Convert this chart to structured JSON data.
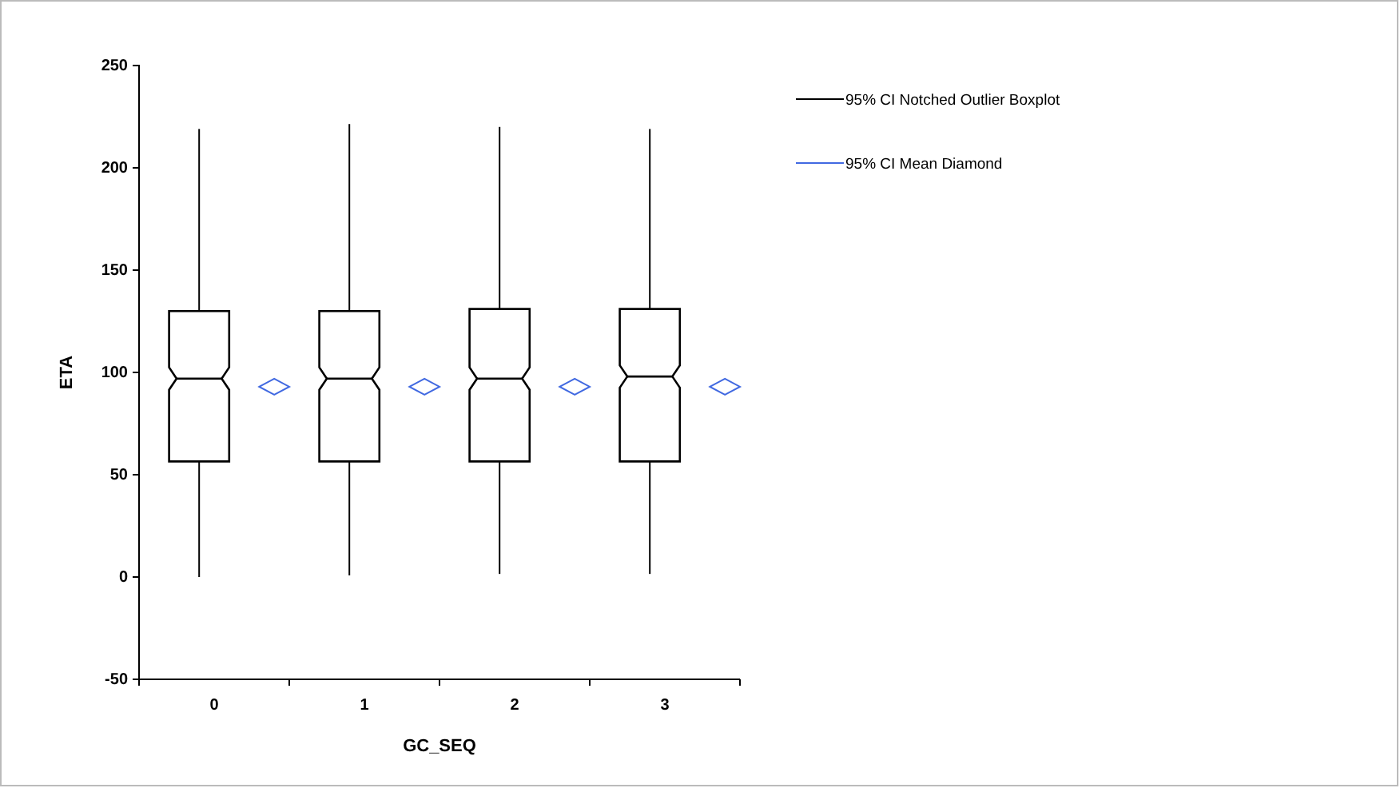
{
  "chart_data": {
    "type": "box",
    "xlabel": "GC_SEQ",
    "ylabel": "ETA",
    "categories": [
      "0",
      "1",
      "2",
      "3"
    ],
    "ylim": [
      -50,
      250
    ],
    "yticks": [
      -50,
      0,
      50,
      100,
      150,
      200,
      250
    ],
    "grid": false,
    "legend": "top right",
    "series": [
      {
        "name": "95% CI Notched Outlier Boxplot",
        "color": "#000000",
        "boxes": [
          {
            "low": 0,
            "q1": 56.5,
            "median": 97,
            "q3": 130,
            "high": 219
          },
          {
            "low": 0.8,
            "q1": 56.5,
            "median": 97,
            "q3": 130,
            "high": 221.4
          },
          {
            "low": 1.5,
            "q1": 56.5,
            "median": 97,
            "q3": 131,
            "high": 220
          },
          {
            "low": 1.5,
            "q1": 56.5,
            "median": 98,
            "q3": 131,
            "high": 219
          }
        ]
      },
      {
        "name": "95% CI Mean Diamond",
        "type": "scatter",
        "marker": "diamond",
        "color": "#4169e1",
        "x": [
          "0",
          "1",
          "2",
          "3"
        ],
        "values": [
          93,
          93,
          93,
          93
        ]
      }
    ]
  }
}
